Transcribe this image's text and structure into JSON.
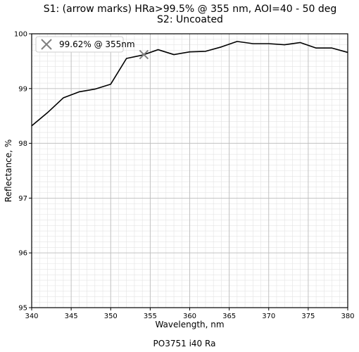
{
  "chart_data": {
    "type": "line",
    "title": "S1: (arrow marks) HRa>99.5% @ 355 nm, AOI=40 - 50 deg",
    "subtitle": "S2: Uncoated",
    "xlabel": "Wavelength, nm",
    "ylabel": "Reflectance, %",
    "xlim": [
      340,
      380
    ],
    "ylim": [
      95,
      100
    ],
    "xticks": [
      "340",
      "345",
      "350",
      "355",
      "360",
      "365",
      "370",
      "375",
      "380"
    ],
    "yticks": [
      "95",
      "96",
      "97",
      "98",
      "99",
      "100"
    ],
    "grid": true,
    "minor_grid": true,
    "legend_position": "top-left",
    "series": [
      {
        "color": "#000000",
        "x": [
          340,
          342,
          344,
          346,
          348,
          350,
          352,
          354,
          356,
          358,
          360,
          362,
          364,
          366,
          368,
          370,
          372,
          374,
          376,
          378,
          380
        ],
        "y": [
          98.32,
          98.56,
          98.83,
          98.94,
          98.99,
          99.08,
          99.55,
          99.61,
          99.71,
          99.62,
          99.67,
          99.68,
          99.76,
          99.86,
          99.82,
          99.82,
          99.8,
          99.84,
          99.74,
          99.74,
          99.66
        ]
      }
    ],
    "marker": {
      "label": "99.62% @ 355nm",
      "x": 354.2,
      "y": 99.62,
      "symbol": "x",
      "color": "#808080"
    }
  },
  "footer": "PO3751 i40 Ra"
}
